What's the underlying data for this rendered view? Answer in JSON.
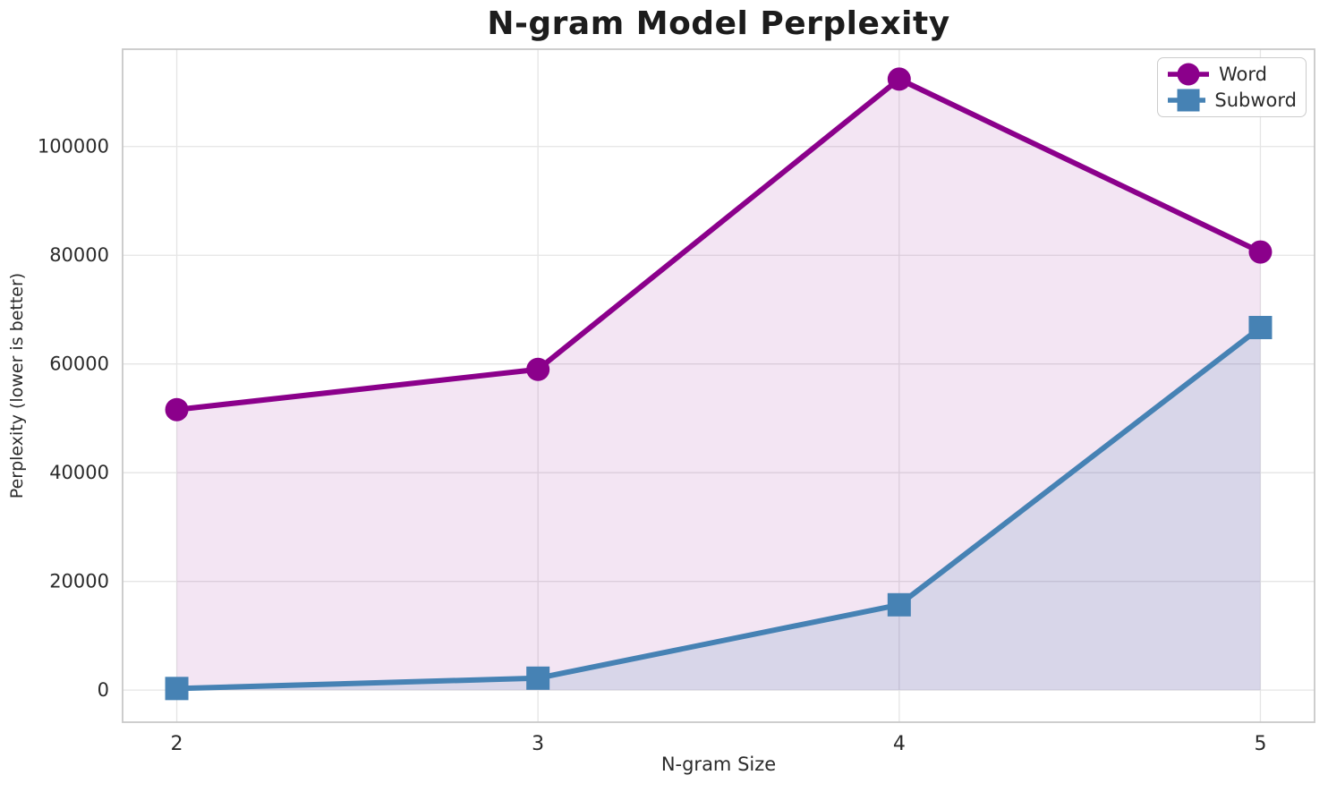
{
  "chart_data": {
    "type": "line",
    "title": "N-gram Model Perplexity",
    "xlabel": "N-gram Size",
    "ylabel": "Perplexity (lower is better)",
    "x": [
      2,
      3,
      4,
      5
    ],
    "series": [
      {
        "name": "Word",
        "values": [
          51600,
          59000,
          112400,
          80600
        ],
        "color": "#8B008B",
        "marker": "circle",
        "fill_opacity": 0.1
      },
      {
        "name": "Subword",
        "values": [
          300,
          2200,
          15700,
          66700
        ],
        "color": "#4682B4",
        "marker": "square",
        "fill_opacity": 0.15
      }
    ],
    "fill_to_zero": true,
    "xlim": [
      1.85,
      5.15
    ],
    "ylim": [
      -5900,
      117900
    ],
    "xticks": [
      2,
      3,
      4,
      5
    ],
    "xtick_labels": [
      "2",
      "3",
      "4",
      "5"
    ],
    "yticks": [
      0,
      20000,
      40000,
      60000,
      80000,
      100000
    ],
    "ytick_labels": [
      "0",
      "20000",
      "40000",
      "60000",
      "80000",
      "100000"
    ],
    "grid": true,
    "legend_position": "top-right"
  },
  "style_colors": {
    "grid": "#e5e5e5",
    "spine": "#c8c8c8",
    "tick_text": "#2b2b2b",
    "title_text": "#1c1c1c",
    "plot_background": "#ffffff"
  }
}
